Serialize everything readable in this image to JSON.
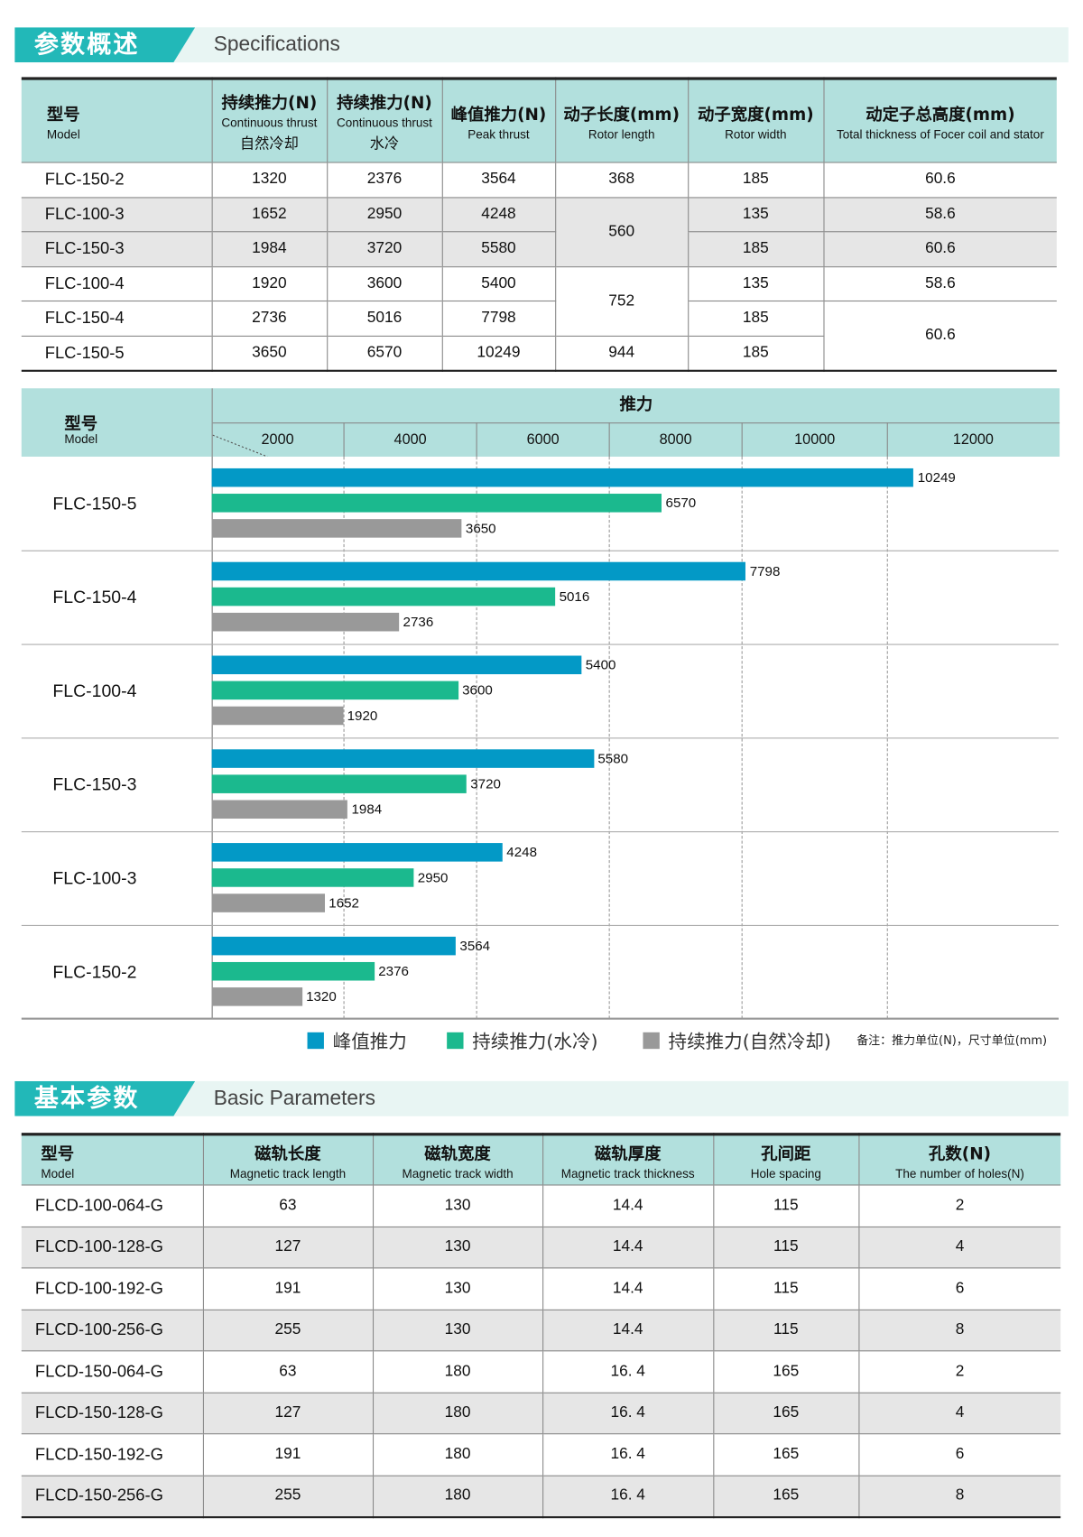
{
  "section1": {
    "title_cn": "参数概述",
    "title_en": "Specifications"
  },
  "spec_table": {
    "headers": [
      {
        "cn": "型号",
        "en": "Model"
      },
      {
        "cn": "持续推力(N)",
        "en": "Continuous thrust",
        "cn2": "自然冷却"
      },
      {
        "cn": "持续推力(N)",
        "en": "Continuous thrust",
        "cn2": "水冷"
      },
      {
        "cn": "峰值推力(N)",
        "en": "Peak thrust"
      },
      {
        "cn": "动子长度(mm)",
        "en": "Rotor length"
      },
      {
        "cn": "动子宽度(mm)",
        "en": "Rotor width"
      },
      {
        "cn": "动定子总高度(mm)",
        "en": "Total thickness of  Focer coil and stator"
      }
    ],
    "rows": [
      {
        "model": "FLC-150-2",
        "cont_natural": "1320",
        "cont_water": "2376",
        "peak": "3564",
        "rotor_length": "368",
        "rotor_width": "185",
        "total_thickness": "60.6"
      },
      {
        "model": "FLC-100-3",
        "cont_natural": "1652",
        "cont_water": "2950",
        "peak": "4248",
        "rotor_length": "560",
        "rotor_width": "135",
        "total_thickness": "58.6"
      },
      {
        "model": "FLC-150-3",
        "cont_natural": "1984",
        "cont_water": "3720",
        "peak": "5580",
        "rotor_length": "560",
        "rotor_width": "185",
        "total_thickness": "60.6"
      },
      {
        "model": "FLC-100-4",
        "cont_natural": "1920",
        "cont_water": "3600",
        "peak": "5400",
        "rotor_length": "752",
        "rotor_width": "135",
        "total_thickness": "58.6"
      },
      {
        "model": "FLC-150-4",
        "cont_natural": "2736",
        "cont_water": "5016",
        "peak": "7798",
        "rotor_length": "752",
        "rotor_width": "185",
        "total_thickness": "60.6"
      },
      {
        "model": "FLC-150-5",
        "cont_natural": "3650",
        "cont_water": "6570",
        "peak": "10249",
        "rotor_length": "944",
        "rotor_width": "185",
        "total_thickness": "60.6"
      }
    ]
  },
  "chart_data": {
    "type": "bar",
    "orientation": "horizontal",
    "title": "推力",
    "model_header_cn": "型号",
    "model_header_en": "Model",
    "x_ticks": [
      "2000",
      "4000",
      "6000",
      "8000",
      "10000",
      "12000"
    ],
    "categories": [
      "FLC-150-5",
      "FLC-150-4",
      "FLC-100-4",
      "FLC-150-3",
      "FLC-100-3",
      "FLC-150-2"
    ],
    "series": [
      {
        "name": "峰值推力",
        "color": "#0399c6",
        "values": [
          10249,
          7798,
          5400,
          5580,
          4248,
          3564
        ]
      },
      {
        "name": "持续推力(水冷)",
        "color": "#1bb98e",
        "values": [
          6570,
          5016,
          3600,
          3720,
          2950,
          2376
        ]
      },
      {
        "name": "持续推力(自然冷却)",
        "color": "#999999",
        "values": [
          3650,
          2736,
          1920,
          1984,
          1652,
          1320
        ]
      }
    ],
    "grid": true,
    "legend_position": "bottom",
    "note": "备注：推力单位(N)，尺寸单位(mm)"
  },
  "section2": {
    "title_cn": "基本参数",
    "title_en": "Basic Parameters"
  },
  "basic_table": {
    "headers": [
      {
        "cn": "型号",
        "en": "Model"
      },
      {
        "cn": "磁轨长度",
        "en": "Magnetic track length"
      },
      {
        "cn": "磁轨宽度",
        "en": "Magnetic track width"
      },
      {
        "cn": "磁轨厚度",
        "en": "Magnetic track thickness"
      },
      {
        "cn": "孔间距",
        "en": "Hole spacing"
      },
      {
        "cn": "孔数(N)",
        "en": "The number of holes(N)"
      }
    ],
    "rows": [
      [
        "FLCD-100-064-G",
        "63",
        "130",
        "14.4",
        "115",
        "2"
      ],
      [
        "FLCD-100-128-G",
        "127",
        "130",
        "14.4",
        "115",
        "4"
      ],
      [
        "FLCD-100-192-G",
        "191",
        "130",
        "14.4",
        "115",
        "6"
      ],
      [
        "FLCD-100-256-G",
        "255",
        "130",
        "14.4",
        "115",
        "8"
      ],
      [
        "FLCD-150-064-G",
        "63",
        "180",
        "16. 4",
        "165",
        "2"
      ],
      [
        "FLCD-150-128-G",
        "127",
        "180",
        "16. 4",
        "165",
        "4"
      ],
      [
        "FLCD-150-192-G",
        "191",
        "180",
        "16. 4",
        "165",
        "6"
      ],
      [
        "FLCD-150-256-G",
        "255",
        "180",
        "16. 4",
        "165",
        "8"
      ]
    ]
  }
}
